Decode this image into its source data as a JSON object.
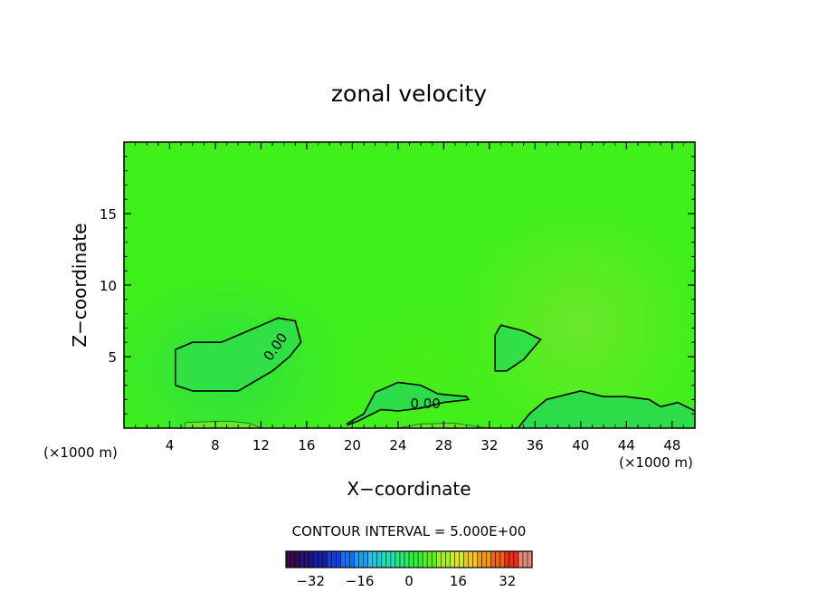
{
  "chart_data": {
    "type": "heatmap",
    "title": "zonal velocity",
    "xlabel": "X−coordinate",
    "ylabel": "Z−coordinate",
    "x_unit_label_left": "(×1000 m)",
    "x_unit_label_right": "(×1000 m)",
    "xlim": [
      0,
      50
    ],
    "ylim": [
      0,
      20
    ],
    "x_ticks": [
      4,
      8,
      12,
      16,
      20,
      24,
      28,
      32,
      36,
      40,
      44,
      48
    ],
    "x_tick_labels": [
      "4",
      "8",
      "12",
      "16",
      "20",
      "24",
      "28",
      "32",
      "36",
      "40",
      "44",
      "48"
    ],
    "y_ticks": [
      5,
      10,
      15
    ],
    "y_tick_labels": [
      "5",
      "10",
      "15"
    ],
    "contour_labels": [
      "0.00",
      "0.00"
    ],
    "contour_interval_text": "CONTOUR INTERVAL = 5.000E+00",
    "colorbar": {
      "range": [
        -40,
        40
      ],
      "ticks": [
        -32,
        -16,
        0,
        16,
        32
      ],
      "tick_labels": [
        "−32",
        "−16",
        "0",
        "16",
        "32"
      ],
      "colors": [
        "#3a0a50",
        "#24137a",
        "#141ea8",
        "#1040d8",
        "#1470f0",
        "#18a0f0",
        "#1cc8e0",
        "#20e0b0",
        "#28ec70",
        "#34f038",
        "#60f020",
        "#a0f020",
        "#d8e820",
        "#f0c818",
        "#f09810",
        "#f06010",
        "#e83018",
        "#e08a78"
      ]
    },
    "regions": [
      {
        "type": "negative-closed",
        "label": "0.00",
        "points": [
          [
            4.5,
            3
          ],
          [
            4.5,
            5.5
          ],
          [
            6,
            6
          ],
          [
            8.5,
            6
          ],
          [
            10,
            6.5
          ],
          [
            13.5,
            7.7
          ],
          [
            15,
            7.5
          ],
          [
            15.5,
            6
          ],
          [
            14.5,
            5
          ],
          [
            13,
            4
          ],
          [
            10,
            2.6
          ],
          [
            6,
            2.6
          ]
        ]
      },
      {
        "type": "negative-closed",
        "points": [
          [
            32.5,
            4
          ],
          [
            32.5,
            6.5
          ],
          [
            33,
            7.2
          ],
          [
            35,
            6.8
          ],
          [
            36.5,
            6.2
          ],
          [
            35,
            4.8
          ],
          [
            33.5,
            4
          ]
        ]
      },
      {
        "type": "negative-open",
        "label": "0.00",
        "points": [
          [
            19.5,
            0.3
          ],
          [
            21,
            1
          ],
          [
            22,
            2.5
          ],
          [
            24,
            3.2
          ],
          [
            26,
            3
          ],
          [
            27.5,
            2.4
          ],
          [
            30,
            2.2
          ],
          [
            30.2,
            2
          ],
          [
            28,
            1.8
          ],
          [
            26,
            1.4
          ],
          [
            24,
            1.2
          ],
          [
            22.5,
            1.3
          ],
          [
            21.5,
            0.9
          ],
          [
            20.5,
            0.5
          ],
          [
            19.5,
            0.2
          ]
        ]
      },
      {
        "type": "negative-open",
        "points": [
          [
            34.5,
            0
          ],
          [
            35.5,
            1
          ],
          [
            37,
            2
          ],
          [
            40,
            2.6
          ],
          [
            42,
            2.2
          ],
          [
            44,
            2.2
          ],
          [
            46,
            2
          ],
          [
            47,
            1.5
          ],
          [
            48.5,
            1.8
          ],
          [
            50,
            1.2
          ],
          [
            50,
            0
          ]
        ]
      },
      {
        "type": "positive-open",
        "points": [
          [
            5.3,
            0
          ],
          [
            5.4,
            0.4
          ],
          [
            9,
            0.5
          ],
          [
            11,
            0.35
          ],
          [
            12,
            0
          ]
        ]
      },
      {
        "type": "positive-open",
        "points": [
          [
            24,
            0
          ],
          [
            26,
            0.3
          ],
          [
            29,
            0.35
          ],
          [
            31,
            0.1
          ],
          [
            32,
            0
          ]
        ]
      }
    ],
    "grid": false
  }
}
